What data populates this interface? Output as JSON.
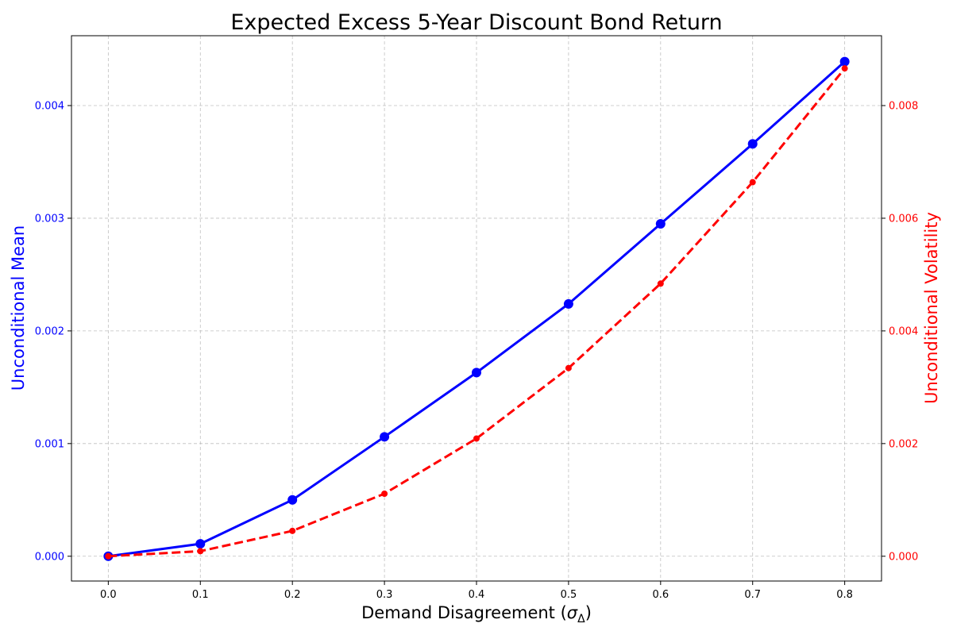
{
  "chart_data": {
    "type": "line",
    "title": "Expected Excess 5-Year Discount Bond Return",
    "xlabel_main": "Demand Disagreement (",
    "xlabel_symbol": "σ",
    "xlabel_subscript": "Δ",
    "xlabel_close": ")",
    "ylabel_left": "Unconditional Mean",
    "ylabel_right": "Unconditional Volatility",
    "x": [
      0.0,
      0.1,
      0.2,
      0.3,
      0.4,
      0.5,
      0.6,
      0.7,
      0.8
    ],
    "xlim": [
      -0.04,
      0.84
    ],
    "ylim_left": [
      -0.00022,
      0.00462
    ],
    "ylim_right": [
      -0.00044,
      0.00924
    ],
    "x_ticks": [
      "0.0",
      "0.1",
      "0.2",
      "0.3",
      "0.4",
      "0.5",
      "0.6",
      "0.7",
      "0.8"
    ],
    "y_ticks_left": [
      {
        "value": 0.0,
        "label": "0.000"
      },
      {
        "value": 0.001,
        "label": "0.001"
      },
      {
        "value": 0.002,
        "label": "0.002"
      },
      {
        "value": 0.003,
        "label": "0.003"
      },
      {
        "value": 0.004,
        "label": "0.004"
      }
    ],
    "y_ticks_right": [
      {
        "value": 0.0,
        "label": "0.000"
      },
      {
        "value": 0.002,
        "label": "0.002"
      },
      {
        "value": 0.004,
        "label": "0.004"
      },
      {
        "value": 0.006,
        "label": "0.006"
      },
      {
        "value": 0.008,
        "label": "0.008"
      }
    ],
    "grid": true,
    "series": [
      {
        "axis": "left",
        "color": "#0000ff",
        "line_style": "solid",
        "marker": "circle",
        "values": [
          0.0,
          0.00011,
          0.0005,
          0.00106,
          0.00163,
          0.00224,
          0.00295,
          0.00366,
          0.00439
        ]
      },
      {
        "axis": "right",
        "color": "#ff0000",
        "line_style": "dashed",
        "marker": "circle",
        "values": [
          0.0,
          9e-05,
          0.00045,
          0.00111,
          0.00209,
          0.00334,
          0.00484,
          0.00664,
          0.00866
        ]
      }
    ]
  }
}
